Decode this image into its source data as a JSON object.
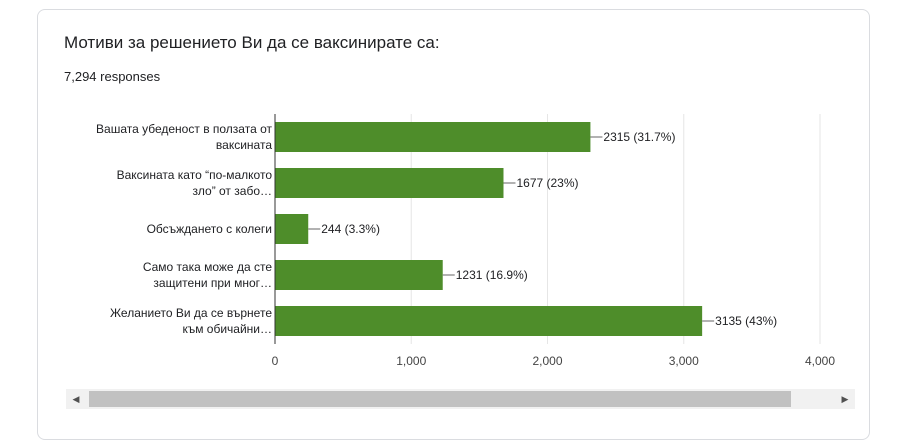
{
  "title": "Мотиви за решението Ви да се ваксинирате са:",
  "responses": "7,294 responses",
  "colors": {
    "bar": "#4e8d2a",
    "grid": "#e6e6e6",
    "axis": "#333333",
    "text": "#202124"
  },
  "icons": {
    "scroll_left": "triangle-left-icon",
    "scroll_right": "triangle-right-icon"
  },
  "scroll_left_glyph": "◀",
  "scroll_right_glyph": "▶",
  "chart_data": {
    "type": "bar",
    "orientation": "horizontal",
    "categories": [
      [
        "Вашата убеденост в ползата от",
        "ваксината"
      ],
      [
        "Ваксината като “по-малкото",
        "зло” от забо…"
      ],
      [
        "Обсъждането с колеги"
      ],
      [
        "Само така може да сте",
        "защитени при мног…"
      ],
      [
        "Желанието Ви да се върнете",
        "към обичайни…"
      ]
    ],
    "values": [
      2315,
      1677,
      244,
      1231,
      3135
    ],
    "data_labels": [
      "2315 (31.7%)",
      "1677 (23%)",
      "244 (3.3%)",
      "1231 (16.9%)",
      "3135 (43%)"
    ],
    "xlim": [
      0,
      4000
    ],
    "xticks": [
      0,
      1000,
      2000,
      3000,
      4000
    ],
    "xtick_labels": [
      "0",
      "1,000",
      "2,000",
      "3,000",
      "4,000"
    ],
    "grid": true
  }
}
